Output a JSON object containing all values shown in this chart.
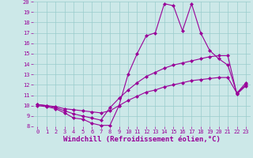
{
  "xlabel": "Windchill (Refroidissement éolien,°C)",
  "x": [
    0,
    1,
    2,
    3,
    4,
    5,
    6,
    7,
    8,
    9,
    10,
    11,
    12,
    13,
    14,
    15,
    16,
    17,
    18,
    19,
    20,
    21,
    22,
    23
  ],
  "line1": [
    10.0,
    9.9,
    9.7,
    9.3,
    8.8,
    8.7,
    8.3,
    8.1,
    8.1,
    10.0,
    13.0,
    15.0,
    16.7,
    17.0,
    19.8,
    19.6,
    17.2,
    19.8,
    17.0,
    15.3,
    14.5,
    13.9,
    11.2,
    12.2
  ],
  "line2": [
    10.1,
    10.0,
    9.8,
    9.5,
    9.2,
    9.0,
    8.8,
    8.6,
    9.8,
    10.7,
    11.5,
    12.2,
    12.8,
    13.2,
    13.6,
    13.9,
    14.1,
    14.3,
    14.5,
    14.7,
    14.8,
    14.8,
    11.1,
    11.9
  ],
  "line3": [
    10.1,
    10.0,
    9.9,
    9.7,
    9.6,
    9.5,
    9.4,
    9.3,
    9.5,
    10.0,
    10.5,
    10.9,
    11.3,
    11.5,
    11.8,
    12.0,
    12.2,
    12.4,
    12.5,
    12.6,
    12.7,
    12.7,
    11.2,
    12.0
  ],
  "line_color": "#990099",
  "bg_color": "#cce8e8",
  "grid_color": "#99cccc",
  "ylim": [
    8,
    20
  ],
  "xlim": [
    -0.5,
    23.5
  ],
  "yticks": [
    8,
    9,
    10,
    11,
    12,
    13,
    14,
    15,
    16,
    17,
    18,
    19,
    20
  ],
  "xticks": [
    0,
    1,
    2,
    3,
    4,
    5,
    6,
    7,
    8,
    9,
    10,
    11,
    12,
    13,
    14,
    15,
    16,
    17,
    18,
    19,
    20,
    21,
    22,
    23
  ],
  "marker": "D",
  "markersize": 2.0,
  "linewidth": 0.8,
  "tick_fontsize": 5.0,
  "xlabel_fontsize": 6.5
}
